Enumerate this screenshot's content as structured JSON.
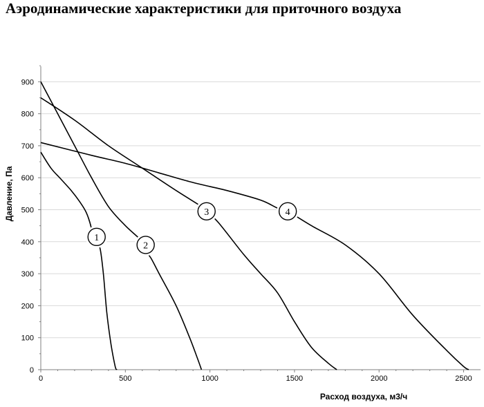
{
  "title": "Аэродинамические характеристики для приточного воздуха",
  "chart_data": {
    "type": "line",
    "title": "Аэродинамические характеристики для приточного воздуха",
    "xlabel": "Расход воздуха, м3/ч",
    "ylabel": "Давление, Па",
    "xlim": [
      0,
      2600
    ],
    "ylim": [
      0,
      950
    ],
    "x_ticks": [
      0,
      500,
      1000,
      1500,
      2000,
      2500
    ],
    "y_ticks": [
      0,
      100,
      200,
      300,
      400,
      500,
      600,
      700,
      800,
      900
    ],
    "grid": "horizontal",
    "colors": {
      "line": "#000000",
      "grid": "#d9d9d9",
      "axis": "#7f7f7f"
    },
    "series": [
      {
        "name": "1",
        "label_at": [
          330,
          415
        ],
        "points": [
          [
            0,
            680
          ],
          [
            60,
            630
          ],
          [
            120,
            595
          ],
          [
            180,
            560
          ],
          [
            230,
            525
          ],
          [
            270,
            490
          ],
          [
            300,
            440
          ],
          [
            310,
            400
          ],
          [
            325,
            395
          ],
          [
            350,
            380
          ],
          [
            370,
            300
          ],
          [
            390,
            180
          ],
          [
            415,
            80
          ],
          [
            440,
            10
          ],
          [
            450,
            0
          ]
        ]
      },
      {
        "name": "2",
        "label_at": [
          620,
          390
        ],
        "points": [
          [
            0,
            900
          ],
          [
            100,
            800
          ],
          [
            200,
            700
          ],
          [
            300,
            600
          ],
          [
            400,
            510
          ],
          [
            500,
            450
          ],
          [
            600,
            400
          ],
          [
            620,
            370
          ],
          [
            650,
            350
          ],
          [
            700,
            300
          ],
          [
            800,
            200
          ],
          [
            880,
            100
          ],
          [
            930,
            30
          ],
          [
            950,
            0
          ]
        ]
      },
      {
        "name": "3",
        "label_at": [
          980,
          495
        ],
        "points": [
          [
            0,
            850
          ],
          [
            200,
            780
          ],
          [
            400,
            700
          ],
          [
            600,
            630
          ],
          [
            800,
            560
          ],
          [
            950,
            510
          ],
          [
            980,
            495
          ],
          [
            1050,
            460
          ],
          [
            1200,
            360
          ],
          [
            1300,
            300
          ],
          [
            1400,
            240
          ],
          [
            1500,
            150
          ],
          [
            1600,
            70
          ],
          [
            1700,
            20
          ],
          [
            1750,
            0
          ]
        ]
      },
      {
        "name": "4",
        "label_at": [
          1460,
          495
        ],
        "points": [
          [
            0,
            710
          ],
          [
            300,
            670
          ],
          [
            500,
            645
          ],
          [
            700,
            615
          ],
          [
            900,
            585
          ],
          [
            1100,
            560
          ],
          [
            1300,
            530
          ],
          [
            1400,
            505
          ],
          [
            1460,
            495
          ],
          [
            1600,
            450
          ],
          [
            1800,
            390
          ],
          [
            2000,
            300
          ],
          [
            2200,
            170
          ],
          [
            2400,
            60
          ],
          [
            2500,
            10
          ],
          [
            2530,
            0
          ]
        ]
      }
    ]
  }
}
